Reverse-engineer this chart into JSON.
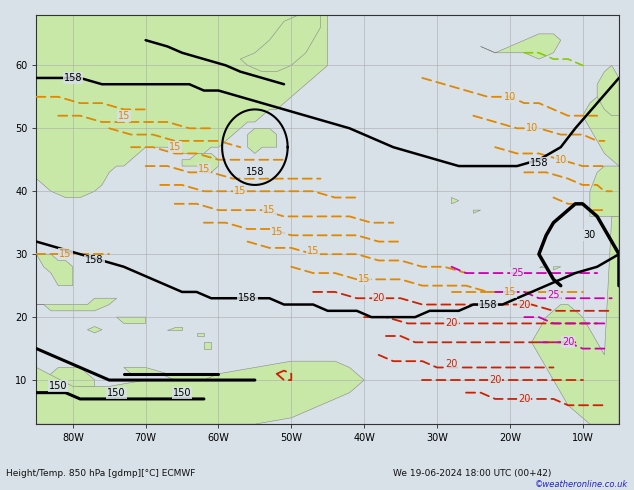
{
  "title_left": "Height/Temp. 850 hPa [gdmp][°C] ECMWF",
  "title_right": "We 19-06-2024 18:00 UTC (00+42)",
  "copyright": "©weatheronline.co.uk",
  "bg_ocean": "#d8e0e8",
  "bg_land": "#c8e8a8",
  "grid_color": "#aaaaaa",
  "figsize": [
    6.34,
    4.9
  ],
  "dpi": 100,
  "xmin": -85,
  "xmax": -5,
  "ymin": 3,
  "ymax": 68,
  "lon_ticks": [
    -80,
    -70,
    -60,
    -50,
    -40,
    -30,
    -20,
    -10
  ],
  "lon_labels": [
    "80W",
    "70W",
    "60W",
    "50W",
    "40W",
    "30W",
    "20W",
    "10W"
  ],
  "lat_ticks": [
    10,
    20,
    30,
    40,
    50,
    60
  ],
  "lat_labels": [
    "10",
    "20",
    "30",
    "40",
    "50",
    "60"
  ],
  "orange_color": "#e08800",
  "red_color": "#cc2200",
  "magenta_color": "#cc00aa",
  "black_color": "#000000",
  "land_edge": "#888888",
  "title_fontsize": 6.5,
  "tick_fontsize": 7
}
